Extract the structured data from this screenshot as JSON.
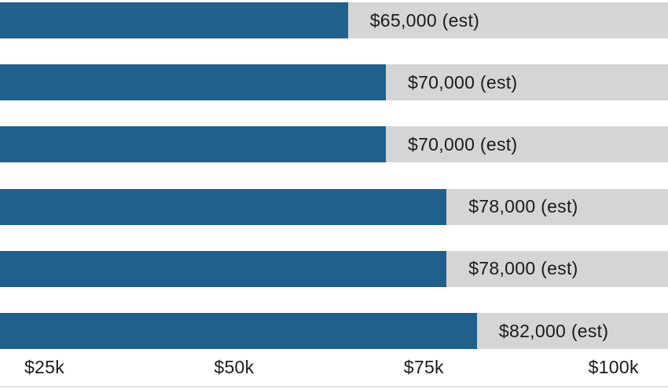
{
  "chart_data": {
    "type": "bar",
    "orientation": "horizontal",
    "title": "",
    "xlabel": "",
    "ylabel": "",
    "series": [
      {
        "value": 65000,
        "label": "$65,000 (est)"
      },
      {
        "value": 70000,
        "label": "$70,000 (est)"
      },
      {
        "value": 70000,
        "label": "$70,000 (est)"
      },
      {
        "value": 78000,
        "label": "$78,000 (est)"
      },
      {
        "value": 78000,
        "label": "$78,000 (est)"
      },
      {
        "value": 82000,
        "label": "$82,000 (est)"
      }
    ],
    "x_ticks": [
      {
        "value": 25000,
        "label": "$25k"
      },
      {
        "value": 50000,
        "label": "$50k"
      },
      {
        "value": 75000,
        "label": "$75k"
      },
      {
        "value": 100000,
        "label": "$100k"
      }
    ],
    "axis": {
      "value_at_left_edge": 19150,
      "value_at_right_edge": 107180,
      "grid": false,
      "legend": "none"
    },
    "colors": {
      "bar": "#1f618c",
      "track": "#d5d5d5",
      "text": "#1a1a1a",
      "baseline": "#e3e3e3",
      "background": "#ffffff"
    }
  }
}
